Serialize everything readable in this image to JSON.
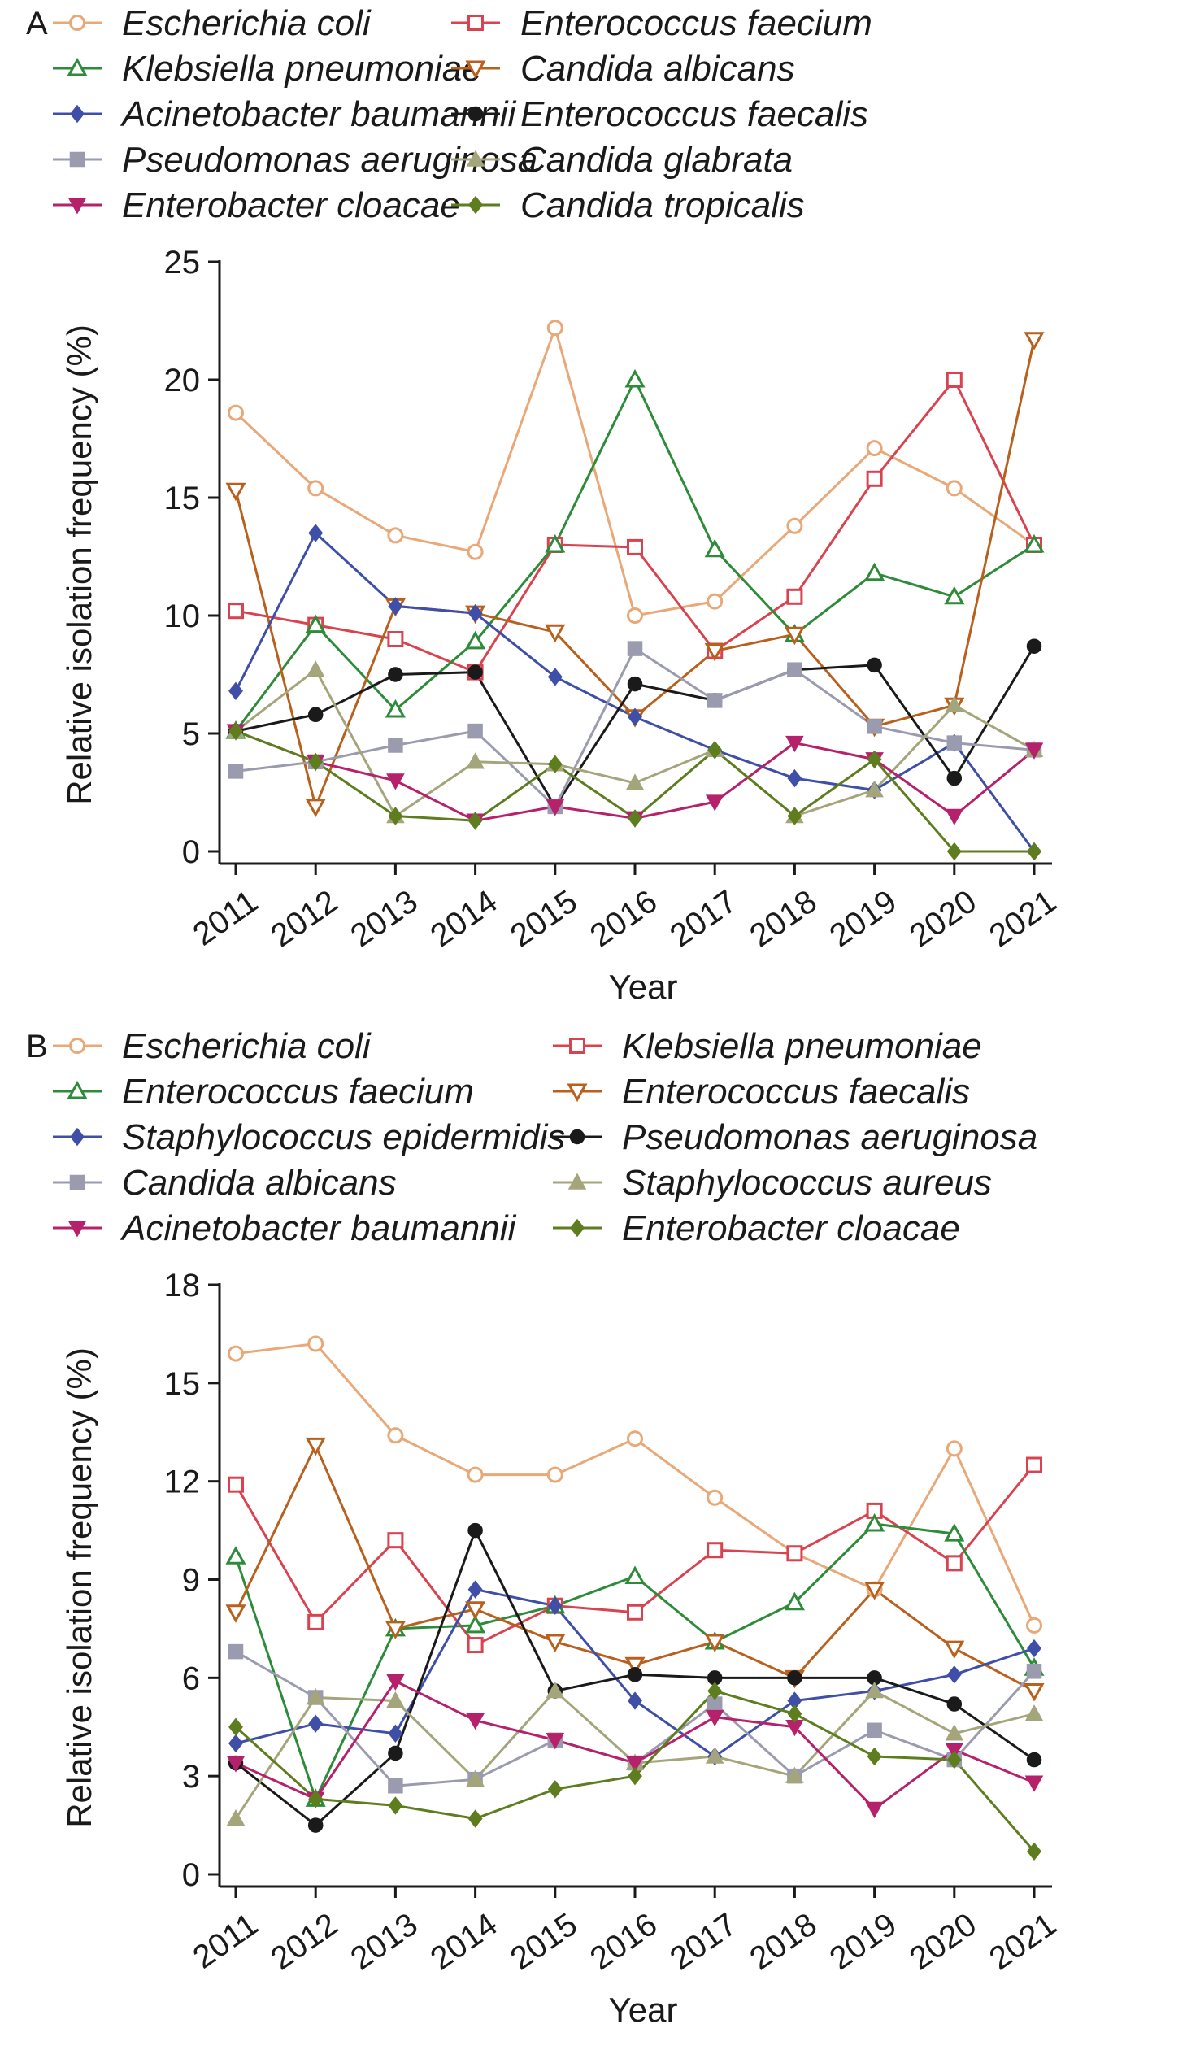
{
  "chart_data": [
    {
      "panel": "A",
      "type": "line",
      "xlabel": "Year",
      "ylabel": "Relative isolation frequency (%)",
      "ylim": [
        0,
        25
      ],
      "yticks": [
        0,
        5,
        10,
        15,
        20,
        25
      ],
      "categories": [
        "2011",
        "2012",
        "2013",
        "2014",
        "2015",
        "2016",
        "2017",
        "2018",
        "2019",
        "2020",
        "2021"
      ],
      "legend_placement": "top",
      "grid": false,
      "series": [
        {
          "name": "Escherichia coli",
          "color": "#E8A878",
          "marker": "circle-open",
          "values": [
            18.6,
            15.4,
            13.4,
            12.7,
            22.2,
            10.0,
            10.6,
            13.8,
            17.1,
            15.4,
            13.0
          ]
        },
        {
          "name": "Enterococcus faecium",
          "color": "#D9434F",
          "marker": "square-open",
          "values": [
            10.2,
            9.6,
            9.0,
            7.6,
            13.0,
            12.9,
            8.5,
            10.8,
            15.8,
            20.0,
            13.0
          ]
        },
        {
          "name": "Klebsiella pneumoniae",
          "color": "#2E8B3A",
          "marker": "triangle-up-open",
          "values": [
            5.1,
            9.6,
            6.0,
            8.9,
            13.0,
            20.0,
            12.8,
            9.2,
            11.8,
            10.8,
            13.0
          ]
        },
        {
          "name": "Candida albicans",
          "color": "#B8601E",
          "marker": "triangle-down-open",
          "values": [
            15.3,
            1.9,
            10.4,
            10.1,
            9.3,
            5.7,
            8.5,
            9.2,
            5.3,
            6.2,
            21.7
          ]
        },
        {
          "name": "Acinetobacter baumannii",
          "color": "#3F4FA8",
          "marker": "diamond",
          "values": [
            6.8,
            13.5,
            10.4,
            10.1,
            7.4,
            5.7,
            4.3,
            3.1,
            2.6,
            4.6,
            0.0
          ]
        },
        {
          "name": "Enterococcus faecalis",
          "color": "#1A1A1A",
          "marker": "circle",
          "values": [
            5.1,
            5.8,
            7.5,
            7.6,
            1.9,
            7.1,
            6.4,
            7.7,
            7.9,
            3.1,
            8.7
          ]
        },
        {
          "name": "Pseudomonas aeruginosa",
          "color": "#9A9BAE",
          "marker": "square",
          "values": [
            3.4,
            3.8,
            4.5,
            5.1,
            1.9,
            8.6,
            6.4,
            7.7,
            5.3,
            4.6,
            4.3
          ]
        },
        {
          "name": "Candida glabrata",
          "color": "#A5A57C",
          "marker": "triangle-up",
          "values": [
            5.1,
            7.7,
            1.5,
            3.8,
            3.7,
            2.9,
            4.3,
            1.5,
            2.6,
            6.2,
            4.3
          ]
        },
        {
          "name": "Enterobacter cloacae",
          "color": "#B5216A",
          "marker": "triangle-down",
          "values": [
            5.1,
            3.8,
            3.0,
            1.3,
            1.9,
            1.4,
            2.1,
            4.6,
            3.9,
            1.5,
            4.3
          ]
        },
        {
          "name": "Candida tropicalis",
          "color": "#5E7D1E",
          "marker": "diamond",
          "values": [
            5.1,
            3.8,
            1.5,
            1.3,
            3.7,
            1.4,
            4.3,
            1.5,
            3.9,
            0.0,
            0.0
          ]
        }
      ]
    },
    {
      "panel": "B",
      "type": "line",
      "xlabel": "Year",
      "ylabel": "Relative isolation frequency (%)",
      "ylim": [
        0,
        18
      ],
      "yticks": [
        0,
        3,
        6,
        9,
        12,
        15,
        18
      ],
      "categories": [
        "2011",
        "2012",
        "2013",
        "2014",
        "2015",
        "2016",
        "2017",
        "2018",
        "2019",
        "2020",
        "2021"
      ],
      "legend_placement": "top",
      "grid": false,
      "series": [
        {
          "name": "Escherichia coli",
          "color": "#E8A878",
          "marker": "circle-open",
          "values": [
            15.9,
            16.2,
            13.4,
            12.2,
            12.2,
            13.3,
            11.5,
            9.8,
            8.7,
            13.0,
            7.6
          ]
        },
        {
          "name": "Klebsiella pneumoniae",
          "color": "#D9434F",
          "marker": "square-open",
          "values": [
            11.9,
            7.7,
            10.2,
            7.0,
            8.2,
            8.0,
            9.9,
            9.8,
            11.1,
            9.5,
            12.5
          ]
        },
        {
          "name": "Enterococcus faecium",
          "color": "#2E8B3A",
          "marker": "triangle-up-open",
          "values": [
            9.7,
            2.3,
            7.5,
            7.6,
            8.2,
            9.1,
            7.1,
            8.3,
            10.7,
            10.4,
            6.3
          ]
        },
        {
          "name": "Enterococcus faecalis",
          "color": "#B8601E",
          "marker": "triangle-down-open",
          "values": [
            8.0,
            13.1,
            7.5,
            8.1,
            7.1,
            6.4,
            7.1,
            6.0,
            8.7,
            6.9,
            5.6
          ]
        },
        {
          "name": "Staphylococcus epidermidis",
          "color": "#3F4FA8",
          "marker": "diamond",
          "values": [
            4.0,
            4.6,
            4.3,
            8.7,
            8.2,
            5.3,
            3.6,
            5.3,
            5.6,
            6.1,
            6.9
          ]
        },
        {
          "name": "Pseudomonas aeruginosa",
          "color": "#1A1A1A",
          "marker": "circle",
          "values": [
            3.4,
            1.5,
            3.7,
            10.5,
            5.6,
            6.1,
            6.0,
            6.0,
            6.0,
            5.2,
            3.5
          ]
        },
        {
          "name": "Candida albicans",
          "color": "#9A9BAE",
          "marker": "square",
          "values": [
            6.8,
            5.4,
            2.7,
            2.9,
            4.1,
            3.4,
            5.2,
            3.0,
            4.4,
            3.5,
            6.2
          ]
        },
        {
          "name": "Staphylococcus aureus",
          "color": "#A5A57C",
          "marker": "triangle-up",
          "values": [
            1.7,
            5.4,
            5.3,
            2.9,
            5.6,
            3.4,
            3.6,
            3.0,
            5.6,
            4.3,
            4.9
          ]
        },
        {
          "name": "Acinetobacter baumannii",
          "color": "#B5216A",
          "marker": "triangle-down",
          "values": [
            3.4,
            2.3,
            5.9,
            4.7,
            4.1,
            3.4,
            4.8,
            4.5,
            2.0,
            3.8,
            2.8
          ]
        },
        {
          "name": "Enterobacter cloacae",
          "color": "#5E7D1E",
          "marker": "diamond",
          "values": [
            4.5,
            2.3,
            2.1,
            1.7,
            2.6,
            3.0,
            5.6,
            4.9,
            3.6,
            3.5,
            0.7
          ]
        }
      ]
    }
  ]
}
